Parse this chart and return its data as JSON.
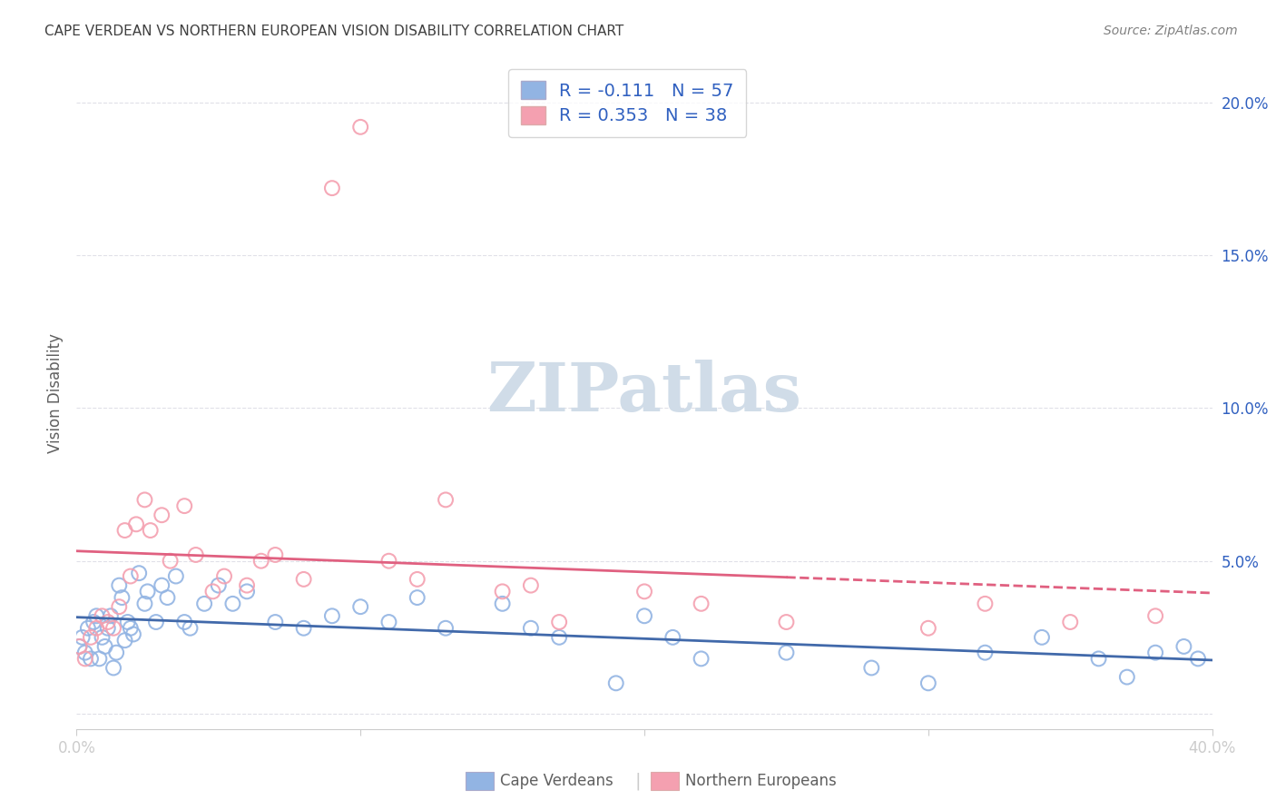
{
  "title": "CAPE VERDEAN VS NORTHERN EUROPEAN VISION DISABILITY CORRELATION CHART",
  "source": "Source: ZipAtlas.com",
  "ylabel": "Vision Disability",
  "xlim": [
    0.0,
    0.4
  ],
  "ylim": [
    -0.005,
    0.215
  ],
  "cape_verdean_R": -0.111,
  "cape_verdean_N": 57,
  "northern_european_R": 0.353,
  "northern_european_N": 38,
  "blue_color": "#92b4e3",
  "pink_color": "#f4a0b0",
  "blue_line_color": "#4169aa",
  "pink_line_color": "#e06080",
  "watermark_color": "#d0dce8",
  "background_color": "#ffffff",
  "grid_color": "#e0e0e8",
  "title_color": "#404040",
  "source_color": "#808080",
  "legend_text_color": "#3060c0",
  "axis_label_color": "#606060",
  "cv_x": [
    0.001,
    0.002,
    0.003,
    0.004,
    0.005,
    0.006,
    0.007,
    0.008,
    0.009,
    0.01,
    0.011,
    0.012,
    0.013,
    0.014,
    0.015,
    0.016,
    0.017,
    0.018,
    0.019,
    0.02,
    0.022,
    0.024,
    0.025,
    0.028,
    0.03,
    0.032,
    0.035,
    0.038,
    0.04,
    0.045,
    0.05,
    0.055,
    0.06,
    0.07,
    0.08,
    0.09,
    0.1,
    0.11,
    0.12,
    0.13,
    0.15,
    0.16,
    0.17,
    0.19,
    0.2,
    0.21,
    0.22,
    0.25,
    0.28,
    0.3,
    0.32,
    0.34,
    0.36,
    0.37,
    0.38,
    0.39,
    0.395
  ],
  "cv_y": [
    0.022,
    0.025,
    0.02,
    0.028,
    0.018,
    0.03,
    0.032,
    0.018,
    0.025,
    0.022,
    0.028,
    0.032,
    0.015,
    0.02,
    0.042,
    0.038,
    0.024,
    0.03,
    0.028,
    0.026,
    0.046,
    0.036,
    0.04,
    0.03,
    0.042,
    0.038,
    0.045,
    0.03,
    0.028,
    0.036,
    0.042,
    0.036,
    0.04,
    0.03,
    0.028,
    0.032,
    0.035,
    0.03,
    0.038,
    0.028,
    0.036,
    0.028,
    0.025,
    0.01,
    0.032,
    0.025,
    0.018,
    0.02,
    0.015,
    0.01,
    0.02,
    0.025,
    0.018,
    0.012,
    0.02,
    0.022,
    0.018
  ],
  "ne_x": [
    0.001,
    0.003,
    0.005,
    0.007,
    0.009,
    0.011,
    0.013,
    0.015,
    0.017,
    0.019,
    0.021,
    0.024,
    0.026,
    0.03,
    0.033,
    0.038,
    0.042,
    0.048,
    0.052,
    0.06,
    0.065,
    0.07,
    0.08,
    0.09,
    0.1,
    0.11,
    0.12,
    0.13,
    0.15,
    0.16,
    0.17,
    0.2,
    0.22,
    0.25,
    0.3,
    0.32,
    0.35,
    0.38
  ],
  "ne_y": [
    0.022,
    0.018,
    0.025,
    0.028,
    0.032,
    0.03,
    0.028,
    0.035,
    0.06,
    0.045,
    0.062,
    0.07,
    0.06,
    0.065,
    0.05,
    0.068,
    0.052,
    0.04,
    0.045,
    0.042,
    0.05,
    0.052,
    0.044,
    0.172,
    0.192,
    0.05,
    0.044,
    0.07,
    0.04,
    0.042,
    0.03,
    0.04,
    0.036,
    0.03,
    0.028,
    0.036,
    0.03,
    0.032
  ],
  "ytick_positions": [
    0.0,
    0.05,
    0.1,
    0.15,
    0.2
  ],
  "ytick_labels": [
    "",
    "5.0%",
    "10.0%",
    "15.0%",
    "20.0%"
  ],
  "xtick_positions": [
    0.0,
    0.1,
    0.2,
    0.3,
    0.4
  ],
  "xtick_labels": [
    "0.0%",
    "",
    "",
    "",
    "40.0%"
  ]
}
